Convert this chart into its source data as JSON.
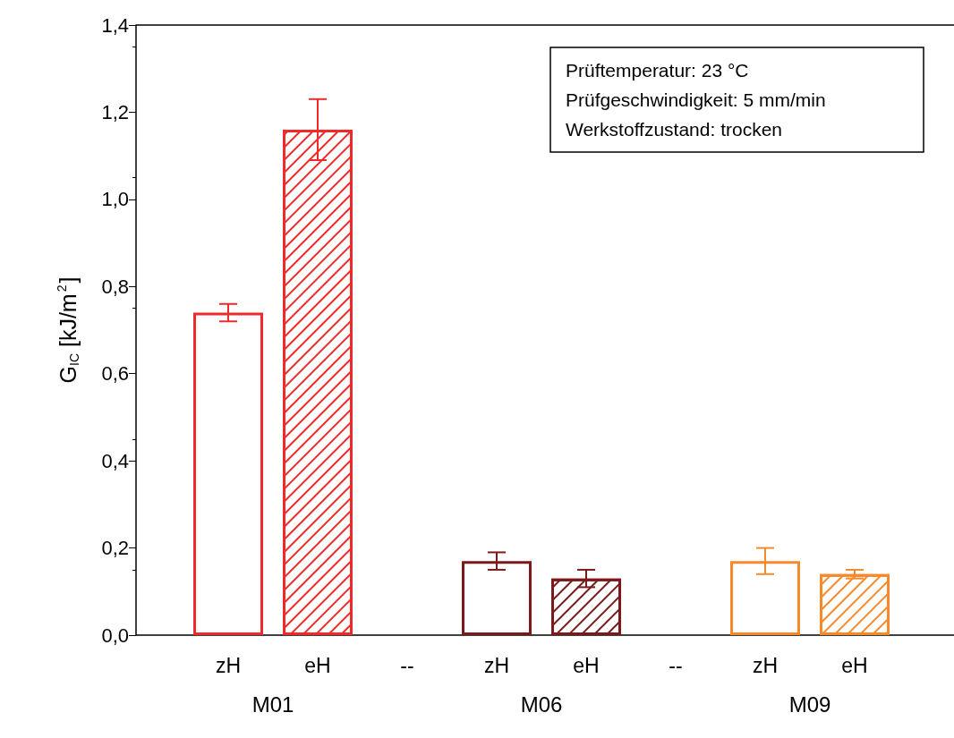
{
  "chart_data": {
    "type": "bar",
    "ylabel": "G$_{IC}$ [kJ/m$^{2}$]",
    "categories": [
      "zH",
      "eH",
      "--",
      "zH",
      "eH",
      "--",
      "zH",
      "eH"
    ],
    "series": [
      {
        "colors": [
          "#ee2a2a",
          null,
          null,
          "#7b1a1a",
          null,
          null,
          "#f5892c",
          null
        ],
        "values": [
          0.74,
          null,
          null,
          0.17,
          null,
          null,
          0.17,
          null
        ],
        "errors": [
          [
            0.72,
            0.76
          ],
          null,
          null,
          [
            0.15,
            0.19
          ],
          null,
          null,
          [
            0.14,
            0.2
          ],
          null
        ]
      },
      {
        "colors": [
          null,
          "#ee2a2a",
          null,
          null,
          "#7b1a1a",
          null,
          null,
          "#f5892c"
        ],
        "values": [
          null,
          1.16,
          null,
          null,
          0.13,
          null,
          null,
          0.14
        ],
        "errors": [
          null,
          [
            1.09,
            1.23
          ],
          null,
          null,
          [
            0.11,
            0.15
          ],
          null,
          null,
          [
            0.13,
            0.15
          ]
        ]
      }
    ],
    "ylim": [
      0,
      1.4
    ],
    "yticks": [
      {
        "value": 0,
        "label": "0,0"
      },
      {
        "value": 0.2,
        "label": "0,2"
      },
      {
        "value": 0.4,
        "label": "0,4"
      },
      {
        "value": 0.6,
        "label": "0,6"
      },
      {
        "value": 0.8,
        "label": "0,8"
      },
      {
        "value": 1.0,
        "label": "1,0"
      },
      {
        "value": 1.2,
        "label": "1,2"
      },
      {
        "value": 1.4,
        "label": "1,4"
      }
    ],
    "grid": false,
    "annotations": [
      "Prüftemperatur: 23 °C\nPrüfgeschwindigkeit: 5 mm/min\nWerkstoffzustand: trocken",
      "M01",
      "M06",
      "M09"
    ]
  }
}
